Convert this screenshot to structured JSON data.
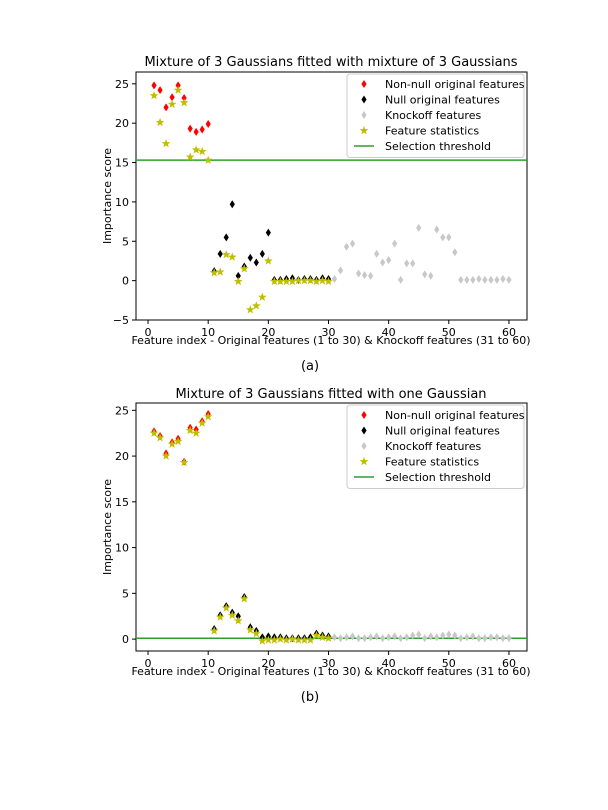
{
  "chart_data": [
    {
      "type": "scatter",
      "panel": "a",
      "title": "Mixture of 3 Gaussians fitted with mixture of 3 Gaussians",
      "xlabel": "Feature index - Original features (1 to 30) & Knockoff features (31 to 60)",
      "ylabel": "Importance score",
      "caption": "(a)",
      "xlim": [
        -2,
        63
      ],
      "ylim": [
        -5,
        26.5
      ],
      "xticks": [
        0,
        10,
        20,
        30,
        40,
        50,
        60
      ],
      "yticks": [
        -5,
        0,
        5,
        10,
        15,
        20,
        25
      ],
      "threshold": 15.3,
      "legend_position": "top-right",
      "series": [
        {
          "name": "Non-null original features",
          "marker": "diamond",
          "color": "#ff0000",
          "x": [
            1,
            2,
            3,
            4,
            5,
            6,
            7,
            8,
            9,
            10
          ],
          "y": [
            24.8,
            24.2,
            22.0,
            23.3,
            24.8,
            23.2,
            19.3,
            18.9,
            19.2,
            19.9
          ]
        },
        {
          "name": "Null original features",
          "marker": "diamond",
          "color": "#000000",
          "x": [
            11,
            12,
            13,
            14,
            15,
            16,
            17,
            18,
            19,
            20,
            21,
            22,
            23,
            24,
            25,
            26,
            27,
            28,
            29,
            30
          ],
          "y": [
            1.2,
            3.4,
            5.5,
            9.7,
            0.6,
            1.8,
            2.9,
            2.3,
            3.4,
            6.1,
            0.1,
            0.1,
            0.2,
            0.3,
            0.1,
            0.2,
            0.2,
            0.1,
            0.3,
            0.2
          ]
        },
        {
          "name": "Knockoff features",
          "marker": "diamond",
          "color": "#c8c8c8",
          "x": [
            31,
            32,
            33,
            34,
            35,
            36,
            37,
            38,
            39,
            40,
            41,
            42,
            43,
            44,
            45,
            46,
            47,
            48,
            49,
            50,
            51,
            52,
            53,
            54,
            55,
            56,
            57,
            58,
            59,
            60
          ],
          "y": [
            0.2,
            1.3,
            4.3,
            4.7,
            0.9,
            0.7,
            0.6,
            3.4,
            2.3,
            2.6,
            4.7,
            0.1,
            2.2,
            2.2,
            6.7,
            0.8,
            0.6,
            6.5,
            5.5,
            5.5,
            3.6,
            0.1,
            0.1,
            0.1,
            0.2,
            0.1,
            0.1,
            0.1,
            0.2,
            0.1
          ]
        },
        {
          "name": "Feature statistics",
          "marker": "star",
          "color": "#bfbf00",
          "x": [
            1,
            2,
            3,
            4,
            5,
            6,
            7,
            8,
            9,
            10,
            11,
            12,
            13,
            14,
            15,
            16,
            17,
            18,
            19,
            20,
            21,
            22,
            23,
            24,
            25,
            26,
            27,
            28,
            29,
            30
          ],
          "y": [
            23.5,
            20.1,
            17.4,
            22.4,
            24.2,
            22.6,
            15.7,
            16.6,
            16.4,
            15.3,
            1.0,
            1.1,
            3.3,
            3.0,
            -0.1,
            1.5,
            -3.7,
            -3.2,
            -2.1,
            2.5,
            -0.1,
            -0.1,
            -0.1,
            -0.1,
            0.0,
            0.0,
            0.0,
            -0.1,
            0.0,
            -0.1
          ]
        },
        {
          "name": "Selection threshold",
          "marker": "line",
          "color": "#2ca02c"
        }
      ]
    },
    {
      "type": "scatter",
      "panel": "b",
      "title": "Mixture of 3 Gaussians fitted with one Gaussian",
      "xlabel": "Feature index - Original features (1 to 30) & Knockoff features (31 to 60)",
      "ylabel": "Importance score",
      "caption": "(b)",
      "xlim": [
        -2,
        63
      ],
      "ylim": [
        -1.3,
        25.8
      ],
      "xticks": [
        0,
        10,
        20,
        30,
        40,
        50,
        60
      ],
      "yticks": [
        0,
        5,
        10,
        15,
        20,
        25
      ],
      "threshold": 0.1,
      "legend_position": "top-right",
      "series": [
        {
          "name": "Non-null original features",
          "marker": "diamond",
          "color": "#ff0000",
          "x": [
            1,
            2,
            3,
            4,
            5,
            6,
            7,
            8,
            9,
            10
          ],
          "y": [
            22.7,
            22.2,
            20.3,
            21.5,
            21.9,
            19.4,
            23.1,
            22.9,
            23.8,
            24.6
          ]
        },
        {
          "name": "Null original features",
          "marker": "diamond",
          "color": "#000000",
          "x": [
            11,
            12,
            13,
            14,
            15,
            16,
            17,
            18,
            19,
            20,
            21,
            22,
            23,
            24,
            25,
            26,
            27,
            28,
            29,
            30
          ],
          "y": [
            1.1,
            2.6,
            3.6,
            2.9,
            2.5,
            4.6,
            1.3,
            0.9,
            0.2,
            0.3,
            0.2,
            0.2,
            0.1,
            0.1,
            0.1,
            0.1,
            0.2,
            0.6,
            0.4,
            0.3
          ]
        },
        {
          "name": "Knockoff features",
          "marker": "diamond",
          "color": "#c8c8c8",
          "x": [
            31,
            32,
            33,
            34,
            35,
            36,
            37,
            38,
            39,
            40,
            41,
            42,
            43,
            44,
            45,
            46,
            47,
            48,
            49,
            50,
            51,
            52,
            53,
            54,
            55,
            56,
            57,
            58,
            59,
            60
          ],
          "y": [
            0.2,
            0.1,
            0.2,
            0.3,
            0.1,
            0.1,
            0.2,
            0.3,
            0.1,
            0.2,
            0.3,
            0.1,
            0.2,
            0.4,
            0.5,
            0.1,
            0.3,
            0.2,
            0.4,
            0.5,
            0.4,
            0.1,
            0.2,
            0.3,
            0.1,
            0.1,
            0.2,
            0.2,
            0.1,
            0.1
          ]
        },
        {
          "name": "Feature statistics",
          "marker": "star",
          "color": "#bfbf00",
          "x": [
            1,
            2,
            3,
            4,
            5,
            6,
            7,
            8,
            9,
            10,
            11,
            12,
            13,
            14,
            15,
            16,
            17,
            18,
            19,
            20,
            21,
            22,
            23,
            24,
            25,
            26,
            27,
            28,
            29,
            30
          ],
          "y": [
            22.5,
            22.0,
            20.0,
            21.3,
            21.6,
            19.3,
            22.8,
            22.5,
            23.6,
            24.3,
            0.9,
            2.4,
            3.4,
            2.6,
            2.0,
            4.4,
            1.0,
            0.6,
            -0.2,
            -0.1,
            -0.1,
            0.0,
            -0.1,
            0.0,
            -0.1,
            -0.1,
            -0.1,
            0.4,
            0.2,
            0.1
          ]
        },
        {
          "name": "Selection threshold",
          "marker": "line",
          "color": "#2ca02c"
        }
      ]
    }
  ]
}
